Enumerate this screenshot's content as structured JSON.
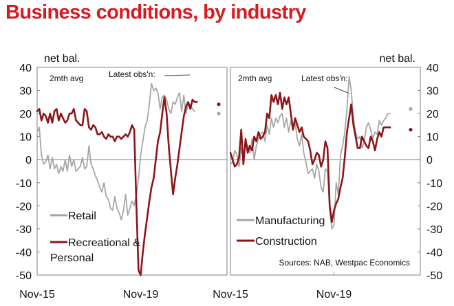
{
  "title": "Business conditions, by industry",
  "colors": {
    "title": "#d71920",
    "grey_series": "#a6a6a6",
    "red_series": "#8b1518",
    "frame": "#7f7f7f"
  },
  "chart_data": [
    {
      "type": "line",
      "panel": "left",
      "y_axis_side": "left",
      "unit_label": "net bal.",
      "avg_label": "2mth avg",
      "latest_label": "Latest obs'n:",
      "ylim": [
        -50,
        40
      ],
      "yticks": [
        "40",
        "30",
        "20",
        "10",
        "0",
        "-10",
        "-20",
        "-30",
        "-40",
        "-50"
      ],
      "x_tick_labels": [
        "Nov-15",
        "Nov-19"
      ],
      "x_tick_months": [
        0,
        48
      ],
      "x_range_months": [
        0,
        88
      ],
      "legend": [
        "Retail",
        "Recreational & Personal"
      ],
      "series": [
        {
          "name": "Retail",
          "color": "grey",
          "months": [
            0,
            1,
            2,
            3,
            4,
            5,
            6,
            7,
            8,
            9,
            10,
            11,
            12,
            13,
            14,
            15,
            16,
            17,
            18,
            19,
            20,
            21,
            22,
            23,
            24,
            25,
            26,
            27,
            28,
            29,
            30,
            31,
            32,
            33,
            34,
            35,
            36,
            37,
            38,
            39,
            40,
            41,
            42,
            43,
            44,
            45,
            46,
            47,
            48,
            49,
            50,
            51,
            52,
            53,
            54,
            55,
            56,
            57,
            58,
            59,
            60,
            61,
            62,
            63,
            64,
            65,
            66,
            67,
            68,
            69,
            70,
            71,
            72,
            73,
            74,
            75,
            76,
            77,
            78,
            79,
            80,
            81,
            82,
            83,
            84
          ],
          "values": [
            12,
            14,
            2,
            -2,
            -1,
            2,
            -4,
            1,
            -4,
            -2,
            -6,
            -3,
            -5,
            0,
            -5,
            2,
            -3,
            0,
            -5,
            -4,
            -3,
            1,
            -4,
            -3,
            6,
            -2,
            -4,
            -7,
            -9,
            -12,
            -14,
            -10,
            -16,
            -17,
            -21,
            -22,
            -16,
            -21,
            -23,
            -26,
            -22,
            -15,
            -24,
            -21,
            -18,
            -20,
            -15,
            -8,
            2,
            8,
            14,
            17,
            24,
            33,
            30,
            31,
            29,
            22,
            27,
            28,
            26,
            22,
            20,
            25,
            24,
            27,
            29,
            21,
            28,
            20,
            24,
            24,
            22,
            21,
            null,
            null,
            null,
            null,
            null,
            null,
            null,
            null,
            null,
            null,
            null
          ],
          "latest_obs": 20
        },
        {
          "name": "Recreational & Personal",
          "color": "red",
          "months": [
            0,
            1,
            2,
            3,
            4,
            5,
            6,
            7,
            8,
            9,
            10,
            11,
            12,
            13,
            14,
            15,
            16,
            17,
            18,
            19,
            20,
            21,
            22,
            23,
            24,
            25,
            26,
            27,
            28,
            29,
            30,
            31,
            32,
            33,
            34,
            35,
            36,
            37,
            38,
            39,
            40,
            41,
            42,
            43,
            44,
            45,
            46,
            47,
            48,
            49,
            50,
            51,
            52,
            53,
            54,
            55,
            56,
            57,
            58,
            59,
            60,
            61,
            62,
            63,
            64,
            65,
            66,
            67,
            68,
            69,
            70,
            71,
            72,
            73,
            74,
            75,
            76,
            77,
            78,
            79,
            80,
            81,
            82,
            83,
            84
          ],
          "values": [
            21,
            22,
            17,
            20,
            19,
            16,
            20,
            16,
            21,
            22,
            17,
            20,
            18,
            16,
            17,
            20,
            20,
            22,
            17,
            16,
            15,
            15,
            22,
            21,
            14,
            13,
            15,
            14,
            11,
            11,
            12,
            10,
            9,
            11,
            10,
            10,
            8,
            10,
            10,
            9,
            10,
            11,
            10,
            12,
            15,
            13,
            -20,
            -48,
            -50,
            -40,
            -32,
            -25,
            -18,
            -12,
            -8,
            0,
            8,
            12,
            20,
            27,
            20,
            6,
            -5,
            -15,
            -8,
            -2,
            5,
            12,
            19,
            23,
            25,
            22,
            26,
            25,
            25,
            null,
            null,
            null,
            null,
            null,
            null,
            null,
            null,
            null,
            null
          ],
          "latest_obs": 24
        }
      ]
    },
    {
      "type": "line",
      "panel": "right",
      "y_axis_side": "right",
      "unit_label": "net bal.",
      "avg_label": "2mth avg",
      "latest_label": "Latest obs'n:",
      "ylim": [
        -50,
        40
      ],
      "yticks": [
        "40",
        "30",
        "20",
        "10",
        "0",
        "-10",
        "-20",
        "-30",
        "-40",
        "-50"
      ],
      "x_tick_labels": [
        "Nov-15",
        "Nov-19"
      ],
      "x_tick_months": [
        0,
        48
      ],
      "x_range_months": [
        0,
        88
      ],
      "legend": [
        "Manufacturing",
        "Construction"
      ],
      "source": "Sources: NAB, Westpac Economics",
      "series": [
        {
          "name": "Manufacturing",
          "color": "grey",
          "months": [
            0,
            1,
            2,
            3,
            4,
            5,
            6,
            7,
            8,
            9,
            10,
            11,
            12,
            13,
            14,
            15,
            16,
            17,
            18,
            19,
            20,
            21,
            22,
            23,
            24,
            25,
            26,
            27,
            28,
            29,
            30,
            31,
            32,
            33,
            34,
            35,
            36,
            37,
            38,
            39,
            40,
            41,
            42,
            43,
            44,
            45,
            46,
            47,
            48,
            49,
            50,
            51,
            52,
            53,
            54,
            55,
            56,
            57,
            58,
            59,
            60,
            61,
            62,
            63,
            64,
            65,
            66,
            67,
            68,
            69,
            70,
            71,
            72,
            73,
            74,
            75,
            76,
            77,
            78,
            79,
            80
          ],
          "values": [
            -2,
            -1,
            4,
            2,
            -3,
            5,
            0,
            8,
            6,
            3,
            9,
            0,
            6,
            9,
            11,
            12,
            8,
            15,
            11,
            18,
            14,
            18,
            16,
            19,
            20,
            14,
            18,
            12,
            17,
            13,
            16,
            9,
            6,
            11,
            3,
            -1,
            -6,
            -5,
            -4,
            -8,
            -2,
            -5,
            -12,
            -14,
            -4,
            -5,
            -22,
            -30,
            -28,
            -10,
            -15,
            2,
            6,
            12,
            22,
            36,
            30,
            18,
            12,
            9,
            10,
            5,
            8,
            14,
            16,
            13,
            9,
            12,
            11,
            17,
            15,
            17,
            18,
            20,
            20,
            null,
            null,
            null,
            null,
            null,
            null
          ],
          "latest_obs": 22
        },
        {
          "name": "Construction",
          "color": "red",
          "months": [
            0,
            1,
            2,
            3,
            4,
            5,
            6,
            7,
            8,
            9,
            10,
            11,
            12,
            13,
            14,
            15,
            16,
            17,
            18,
            19,
            20,
            21,
            22,
            23,
            24,
            25,
            26,
            27,
            28,
            29,
            30,
            31,
            32,
            33,
            34,
            35,
            36,
            37,
            38,
            39,
            40,
            41,
            42,
            43,
            44,
            45,
            46,
            47,
            48,
            49,
            50,
            51,
            52,
            53,
            54,
            55,
            56,
            57,
            58,
            59,
            60,
            61,
            62,
            63,
            64,
            65,
            66,
            67,
            68,
            69,
            70,
            71,
            72,
            73,
            74,
            75,
            76,
            77,
            78,
            79,
            80
          ],
          "values": [
            3,
            0,
            -3,
            -2,
            1,
            13,
            -2,
            9,
            3,
            6,
            4,
            10,
            8,
            12,
            9,
            10,
            12,
            20,
            18,
            28,
            25,
            28,
            24,
            29,
            22,
            27,
            24,
            27,
            20,
            13,
            18,
            15,
            12,
            14,
            10,
            9,
            8,
            4,
            -2,
            0,
            3,
            2,
            -3,
            0,
            8,
            5,
            -20,
            -27,
            -22,
            -19,
            -17,
            -12,
            -8,
            1,
            12,
            18,
            24,
            15,
            10,
            5,
            5,
            10,
            8,
            6,
            5,
            10,
            8,
            4,
            9,
            12,
            10,
            14,
            14,
            14,
            14,
            null,
            null,
            null,
            null,
            null,
            null
          ],
          "latest_obs": 13
        }
      ]
    }
  ]
}
